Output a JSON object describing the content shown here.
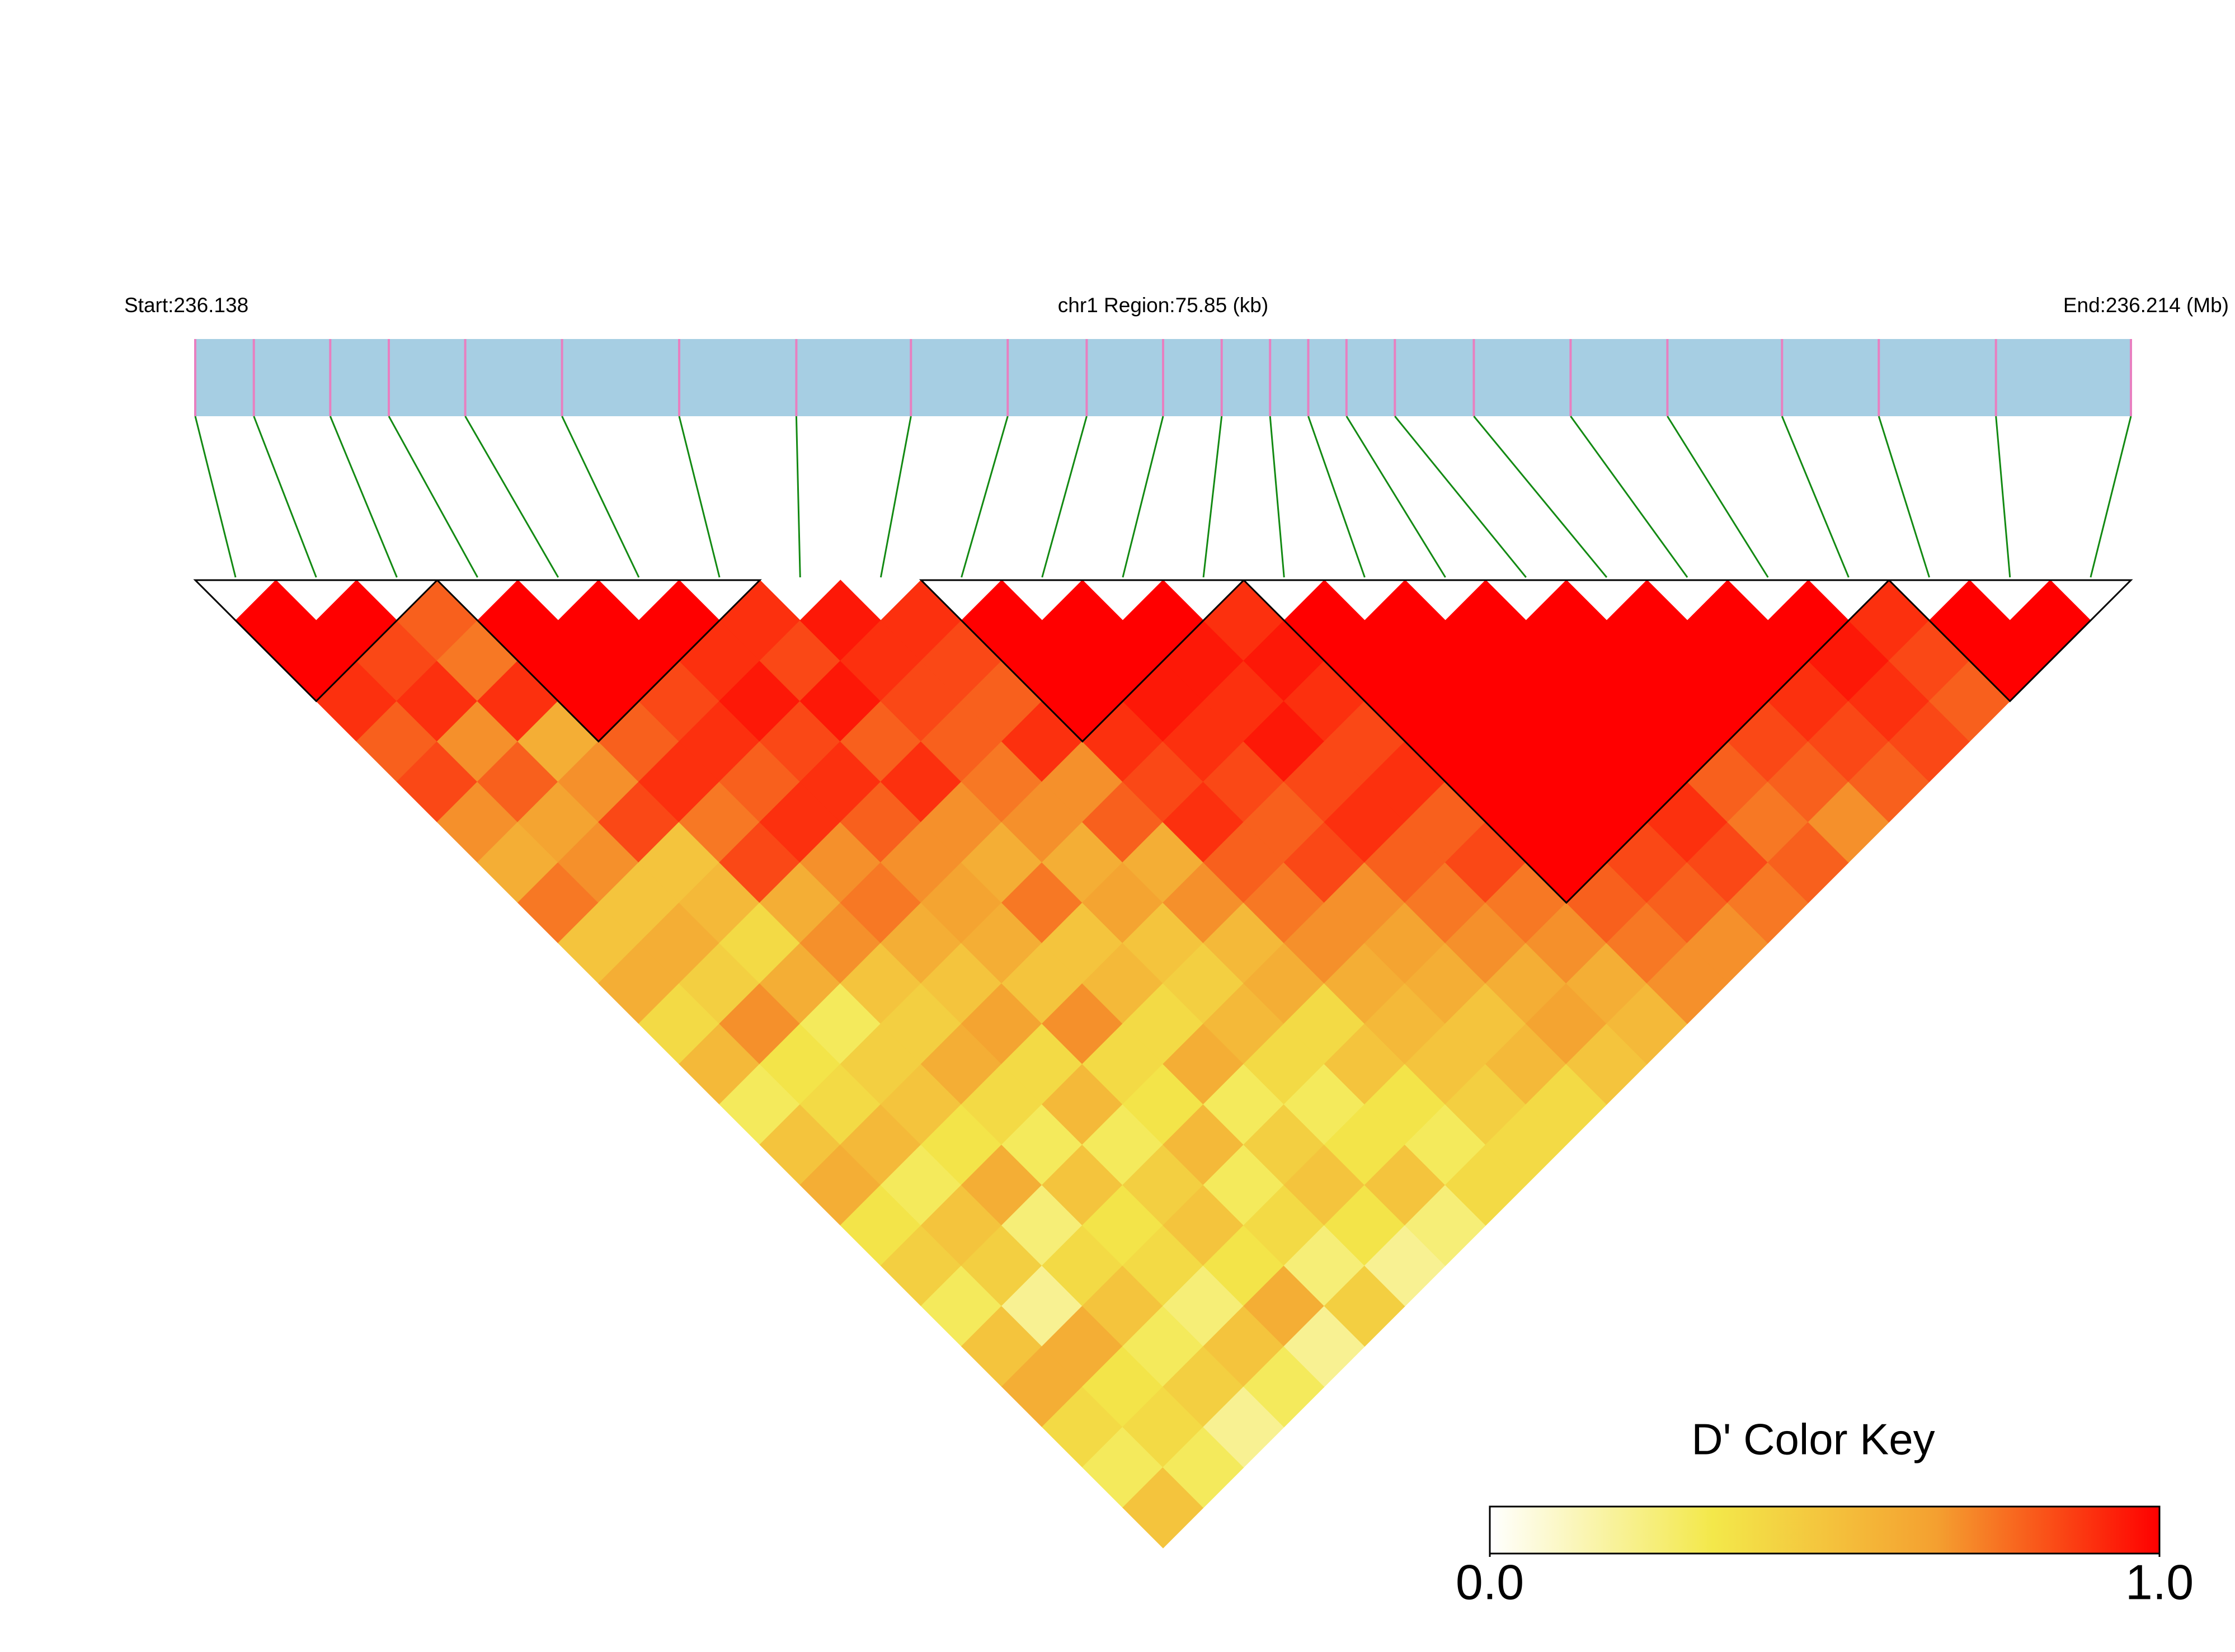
{
  "chart_data": {
    "type": "ld-heatmap",
    "start_label": "Start:236.138",
    "title": "chr1 Region:75.85 (kb)",
    "end_label": "End:236.214 (Mb)",
    "xlim": [
      236.138,
      236.214
    ],
    "positions": [
      236.138,
      236.1403,
      236.1433,
      236.1456,
      236.1486,
      236.1524,
      236.157,
      236.1616,
      236.1661,
      236.1699,
      236.173,
      236.176,
      236.1783,
      236.1802,
      236.1817,
      236.1832,
      236.1851,
      236.1882,
      236.192,
      236.1958,
      236.2003,
      236.2041,
      236.2087,
      236.214
    ],
    "matrix": [
      [
        1,
        1,
        0.9,
        0.8,
        0.85,
        0.7,
        0.6,
        0.75,
        0.5,
        0.6,
        0.4,
        0.55,
        0.3,
        0.5,
        0.6,
        0.35,
        0.45,
        0.3,
        0.5,
        0.6,
        0.4,
        0.3,
        0.5
      ],
      [
        1,
        0.85,
        0.9,
        0.7,
        0.8,
        0.65,
        0.7,
        0.5,
        0.6,
        0.45,
        0.7,
        0.35,
        0.4,
        0.55,
        0.3,
        0.5,
        0.45,
        0.2,
        0.6,
        0.35,
        0.4,
        0.3
      ],
      [
        0.8,
        0.75,
        0.9,
        0.6,
        0.7,
        0.85,
        0.5,
        0.55,
        0.4,
        0.6,
        0.3,
        0.45,
        0.5,
        0.35,
        0.6,
        0.25,
        0.4,
        0.5,
        0.3,
        0.45,
        0.2
      ],
      [
        1,
        1,
        1,
        0.8,
        0.9,
        0.75,
        0.85,
        0.6,
        0.7,
        0.5,
        0.45,
        0.6,
        0.4,
        0.3,
        0.5,
        0.35,
        0.4,
        0.25,
        0.5,
        0.3
      ],
      [
        1,
        1,
        0.85,
        0.9,
        0.8,
        0.9,
        0.7,
        0.75,
        0.6,
        0.5,
        0.65,
        0.4,
        0.55,
        0.3,
        0.45,
        0.5,
        0.35,
        0.6,
        0.2
      ],
      [
        1,
        0.9,
        0.95,
        0.85,
        0.9,
        0.8,
        0.7,
        0.65,
        0.6,
        0.5,
        0.7,
        0.4,
        0.35,
        0.55,
        0.3,
        0.4,
        0.25,
        0.45
      ],
      [
        0.9,
        0.85,
        0.95,
        0.8,
        0.9,
        0.7,
        0.6,
        0.75,
        0.5,
        0.55,
        0.4,
        0.6,
        0.3,
        0.45,
        0.5,
        0.35,
        0.2
      ],
      [
        0.95,
        0.9,
        0.85,
        0.8,
        0.75,
        0.7,
        0.6,
        0.65,
        0.5,
        0.45,
        0.55,
        0.4,
        0.3,
        0.35,
        0.5,
        0.25
      ],
      [
        0.9,
        0.85,
        0.8,
        0.9,
        0.7,
        0.8,
        0.6,
        0.7,
        0.55,
        0.6,
        0.4,
        0.5,
        0.35,
        0.3,
        0.4
      ],
      [
        1,
        1,
        1,
        0.9,
        0.85,
        0.9,
        0.8,
        0.75,
        0.7,
        0.6,
        0.55,
        0.5,
        0.45,
        0.4
      ],
      [
        1,
        1,
        0.95,
        0.9,
        0.85,
        0.8,
        0.85,
        0.7,
        0.65,
        0.6,
        0.5,
        0.55,
        0.4
      ],
      [
        1,
        0.95,
        0.9,
        0.95,
        0.85,
        0.9,
        0.8,
        0.75,
        0.7,
        0.6,
        0.65,
        0.5
      ],
      [
        0.9,
        0.95,
        0.9,
        0.85,
        0.9,
        0.8,
        0.85,
        0.75,
        0.7,
        0.6,
        0.55
      ],
      [
        1,
        1,
        1,
        1,
        1,
        1,
        1,
        0.8,
        0.75,
        0.7
      ],
      [
        1,
        1,
        1,
        1,
        1,
        1,
        0.85,
        0.8,
        0.7
      ],
      [
        1,
        1,
        1,
        1,
        1,
        0.9,
        0.85,
        0.75
      ],
      [
        1,
        1,
        1,
        1,
        0.8,
        0.75,
        0.8
      ],
      [
        1,
        1,
        1,
        0.85,
        0.8,
        0.7
      ],
      [
        1,
        1,
        0.9,
        0.85,
        0.8
      ],
      [
        1,
        0.95,
        0.9,
        0.85
      ],
      [
        0.9,
        0.85,
        0.8
      ],
      [
        1,
        1
      ],
      [
        1
      ]
    ],
    "blocks": [
      [
        0,
        2
      ],
      [
        3,
        6
      ],
      [
        9,
        12
      ],
      [
        13,
        20
      ],
      [
        21,
        23
      ]
    ],
    "snp_color": "#e87fc0",
    "link_color": "#138a13",
    "bar_color": "#a6cee3",
    "color_key": {
      "title": "D' Color Key",
      "lim": [
        0,
        1
      ],
      "ticks": [
        {
          "value": 0,
          "label": "0.0"
        },
        {
          "value": 1,
          "label": "1.0"
        }
      ],
      "colors": [
        "#ffffff",
        "#f3e84a",
        "#f4a030",
        "#ff0000"
      ]
    }
  }
}
